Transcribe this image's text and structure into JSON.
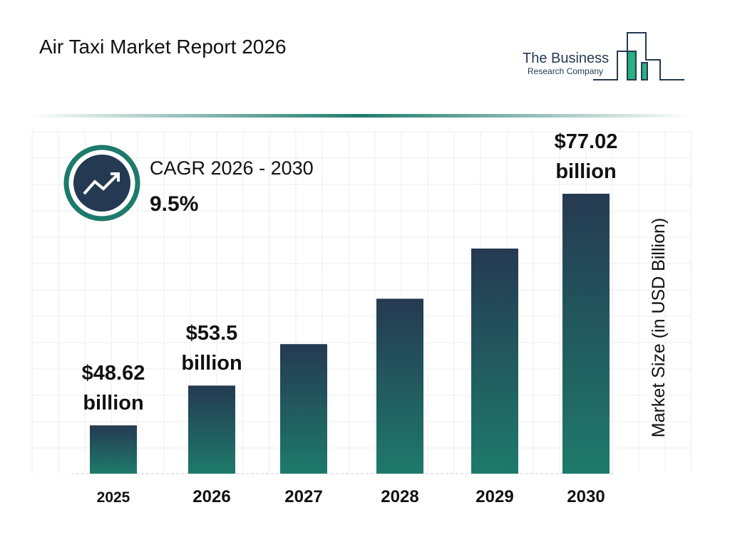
{
  "chart_data": {
    "type": "bar",
    "title": "Air Taxi Market Report 2026",
    "logo": {
      "line1": "The Business",
      "line2": "Research Company"
    },
    "cagr_label": "CAGR 2026 - 2030",
    "cagr_value": "9.5%",
    "y_label": "Market Size (in USD Billion)",
    "categories": [
      "2025",
      "2026",
      "2027",
      "2028",
      "2029",
      "2030"
    ],
    "values": [
      48.62,
      53.5,
      58.58,
      64.15,
      70.3,
      77.02
    ],
    "value_labels": [
      "$48.62 billion",
      "$53.5 billion",
      null,
      null,
      null,
      "$77.02 billion"
    ],
    "color": [
      "#253a52",
      "#1e7a6a"
    ],
    "ylim": [
      42.7,
      82
    ]
  }
}
